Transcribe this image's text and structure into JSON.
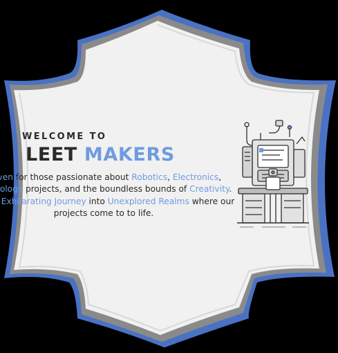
{
  "hero": {
    "welcome": "WELCOME TO",
    "title_part1": "LEET",
    "title_part2": "MAKERS",
    "description": [
      {
        "text": "Haven",
        "highlight": true
      },
      {
        "text": " for those passionate about ",
        "highlight": false
      },
      {
        "text": "Robotics",
        "highlight": true
      },
      {
        "text": ", ",
        "highlight": false
      },
      {
        "text": "Electronics",
        "highlight": true
      },
      {
        "text": ", ",
        "highlight": false
      },
      {
        "text": "Technology",
        "highlight": true
      },
      {
        "text": " projects, and the boundless bounds of ",
        "highlight": false
      },
      {
        "text": "Creativity",
        "highlight": true
      },
      {
        "text": ". It's an ",
        "highlight": false
      },
      {
        "text": "Exhilarating",
        "highlight": true
      },
      {
        "text": " ",
        "highlight": false
      },
      {
        "text": "Journey",
        "highlight": true
      },
      {
        "text": " into ",
        "highlight": false
      },
      {
        "text": "Unexplored Realms",
        "highlight": true
      },
      {
        "text": " where our projects come to to life.",
        "highlight": false
      }
    ],
    "illustration": "robotics-workbench-illustration"
  },
  "colors": {
    "accent": "#6f9be0",
    "text": "#2a2a2a",
    "card": "#f1f1f1",
    "frame_blue": "#4a72c4",
    "frame_gray": "#8a8a8a",
    "background": "#000000"
  }
}
